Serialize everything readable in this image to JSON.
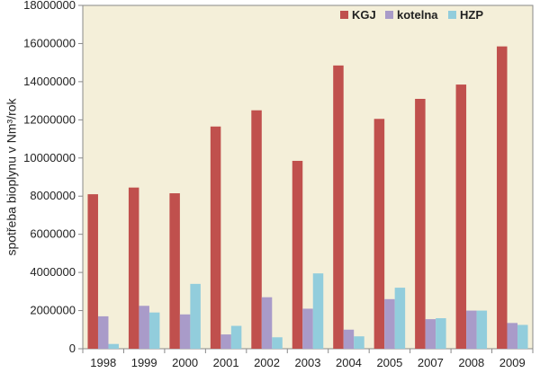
{
  "chart_data": {
    "type": "bar",
    "title": "",
    "xlabel": "",
    "ylabel": "spotřeba bioplynu v Nm³/rok",
    "ylim": [
      0,
      18000000
    ],
    "yticks": [
      0,
      2000000,
      4000000,
      6000000,
      8000000,
      10000000,
      12000000,
      14000000,
      16000000,
      18000000
    ],
    "ytick_labels": [
      "0",
      "2000000",
      "4000000",
      "6000000",
      "8000000",
      "10000000",
      "12000000",
      "14000000",
      "16000000",
      "18000000"
    ],
    "grid": false,
    "legend_position": "top-right",
    "categories": [
      "1998",
      "1999",
      "2000",
      "2001",
      "2002",
      "2003",
      "2004",
      "2005",
      "2007",
      "2008",
      "2009"
    ],
    "series": [
      {
        "name": "KGJ",
        "color": "#c0504d",
        "values": [
          8100000,
          8450000,
          8150000,
          11650000,
          12500000,
          9850000,
          14850000,
          12050000,
          13100000,
          13850000,
          15850000
        ]
      },
      {
        "name": "kotelna",
        "color": "#a99bc9",
        "values": [
          1700000,
          2250000,
          1800000,
          750000,
          2700000,
          2100000,
          1000000,
          2600000,
          1550000,
          2000000,
          1350000
        ]
      },
      {
        "name": "HZP",
        "color": "#92cddc",
        "values": [
          250000,
          1900000,
          3400000,
          1200000,
          600000,
          3950000,
          650000,
          3200000,
          1600000,
          2000000,
          1250000
        ]
      }
    ]
  },
  "colors": {
    "plot_background": "#f4efd9",
    "axis": "#888888"
  }
}
